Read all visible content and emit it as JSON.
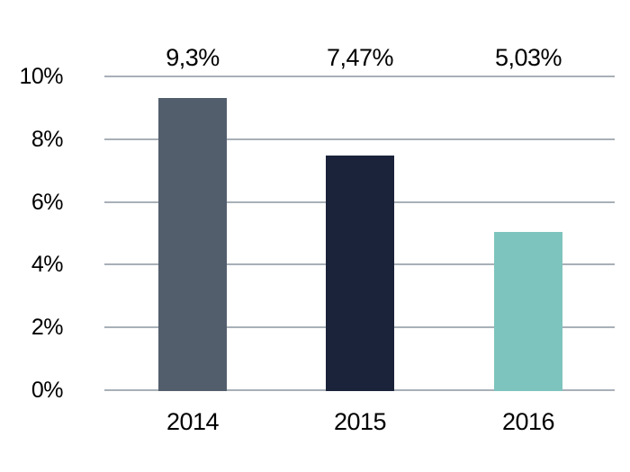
{
  "chart_data": {
    "type": "bar",
    "title": "",
    "xlabel": "",
    "ylabel": "",
    "categories": [
      "2014",
      "2015",
      "2016"
    ],
    "values": [
      9.3,
      7.47,
      5.03
    ],
    "value_labels": [
      "9,3%",
      "7,47%",
      "5,03%"
    ],
    "bar_colors": [
      "#535E6D",
      "#1A2339",
      "#7EC4BE"
    ],
    "ylim": [
      0,
      10
    ],
    "yticks": [
      0,
      2,
      4,
      6,
      8,
      10
    ],
    "ytick_labels": [
      "0%",
      "2%",
      "4%",
      "6%",
      "8%",
      "10%"
    ],
    "grid": "horizontal",
    "legend": "none",
    "colors": {
      "background": "#FFFFFF",
      "gridline": "#A8B0B8",
      "text": "#000000"
    }
  }
}
